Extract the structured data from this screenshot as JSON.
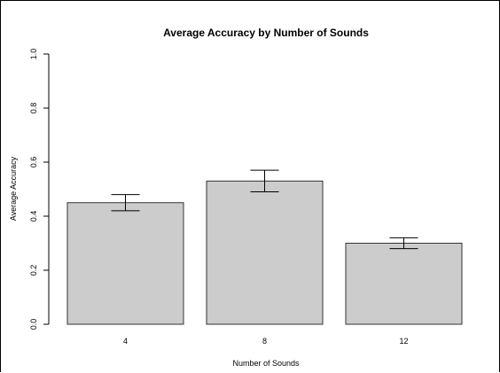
{
  "chart_data": {
    "type": "bar",
    "title": "Average Accuracy by Number of Sounds",
    "xlabel": "Number of Sounds",
    "ylabel": "Average Accuracy",
    "categories": [
      "4",
      "8",
      "12"
    ],
    "values": [
      0.45,
      0.53,
      0.3
    ],
    "error_lower": [
      0.42,
      0.49,
      0.28
    ],
    "error_upper": [
      0.48,
      0.57,
      0.32
    ],
    "ylim": [
      0,
      1.0
    ],
    "yticks": [
      "0.0",
      "0.2",
      "0.4",
      "0.6",
      "0.8",
      "1.0"
    ],
    "bar_color": "#cccccc",
    "grid": false
  }
}
